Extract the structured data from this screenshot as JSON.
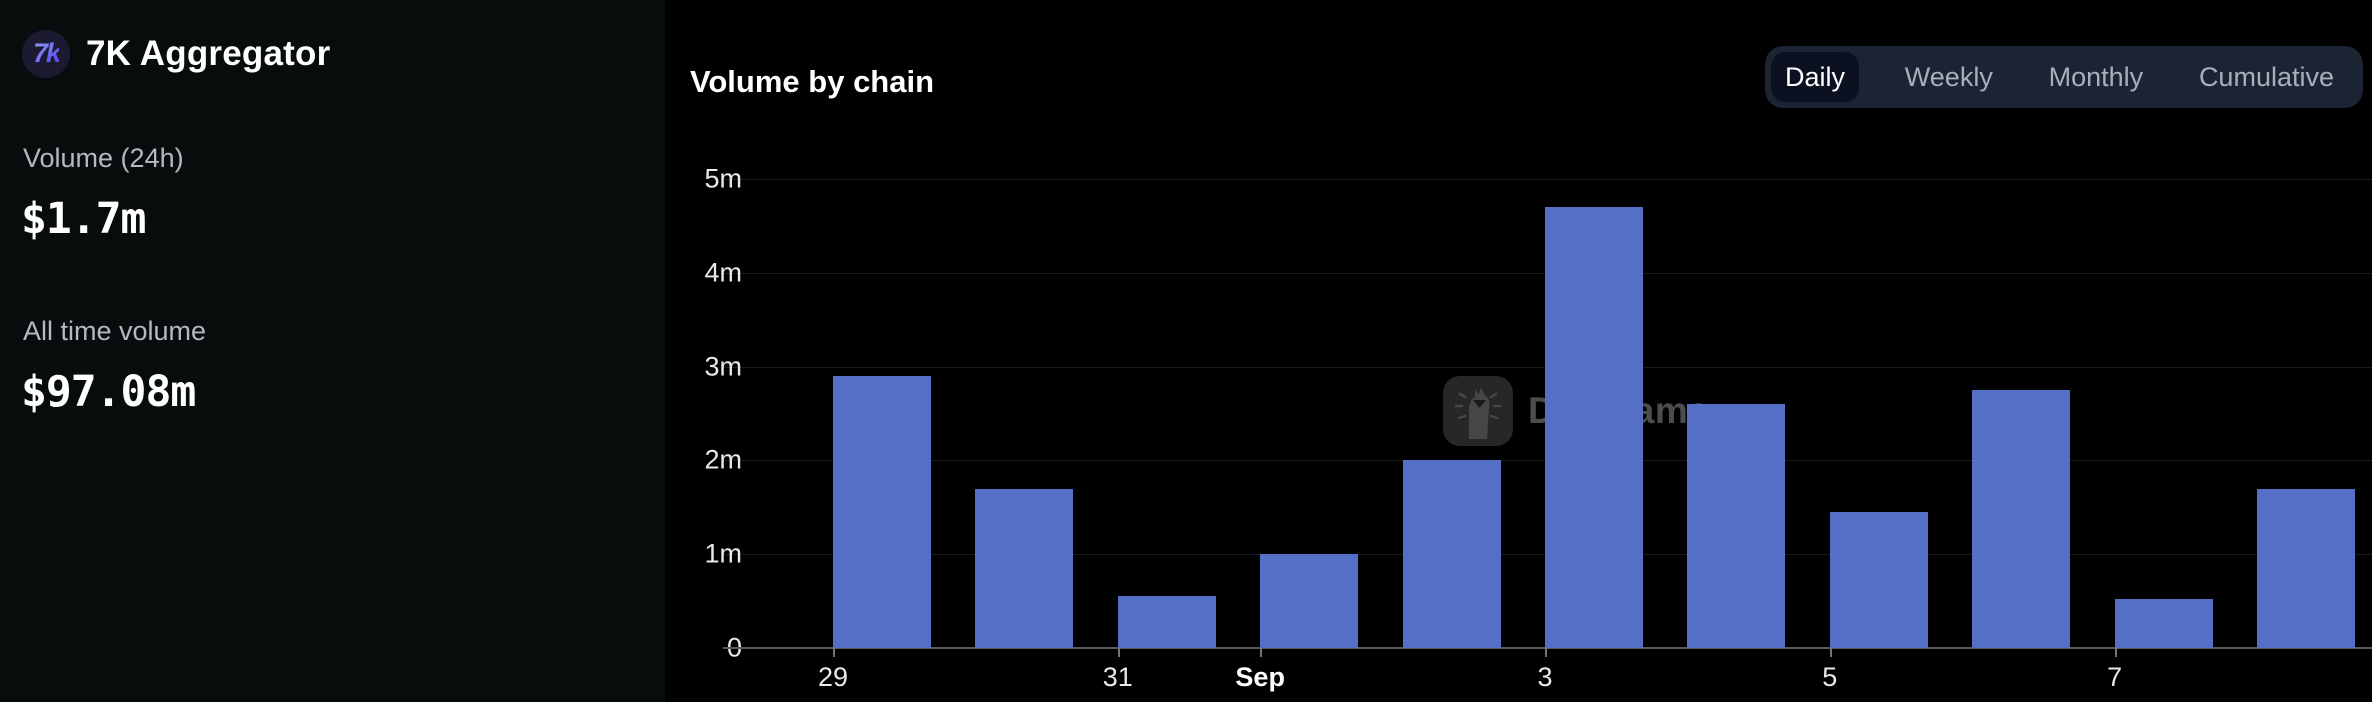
{
  "sidebar": {
    "logo_text": "7k",
    "app_title": "7K Aggregator",
    "stats": [
      {
        "label": "Volume (24h)",
        "value": "$1.7m"
      },
      {
        "label": "All time volume",
        "value": "$97.08m"
      }
    ]
  },
  "chart_header": {
    "title": "Volume by chain",
    "tabs": [
      {
        "label": "Daily",
        "active": true
      },
      {
        "label": "Weekly",
        "active": false
      },
      {
        "label": "Monthly",
        "active": false
      },
      {
        "label": "Cumulative",
        "active": false
      }
    ]
  },
  "watermark": {
    "label": "DefiLlama"
  },
  "chart_data": {
    "type": "bar",
    "title": "Volume by chain",
    "unit": "USD (m = millions)",
    "categories": [
      "Aug 29",
      "Aug 30",
      "Aug 31",
      "Sep 1",
      "Sep 2",
      "Sep 3",
      "Sep 4",
      "Sep 5",
      "Sep 6",
      "Sep 7",
      "Sep 8"
    ],
    "values": [
      2.9,
      1.7,
      0.55,
      1.0,
      2.0,
      4.7,
      2.6,
      1.45,
      2.75,
      0.52,
      1.7
    ],
    "x_tick_labels": [
      {
        "index": 0,
        "label": "29",
        "bold": false
      },
      {
        "index": 2,
        "label": "31",
        "bold": false
      },
      {
        "index": 3,
        "label": "Sep",
        "bold": true
      },
      {
        "index": 5,
        "label": "3",
        "bold": false
      },
      {
        "index": 7,
        "label": "5",
        "bold": false
      },
      {
        "index": 9,
        "label": "7",
        "bold": false
      }
    ],
    "y_tick_labels": [
      "0",
      "1m",
      "2m",
      "3m",
      "4m",
      "5m"
    ],
    "xlabel": "",
    "ylabel": "",
    "ylim": [
      0,
      5
    ],
    "grid": true,
    "legend": false,
    "bar_color": "#5470c6",
    "background_color": "#000000"
  },
  "colors": {
    "sidebar_bg": "#070c0c",
    "chart_bg": "#000000",
    "bar": "#5470c6",
    "tabbar_bg": "#1c2434",
    "tab_active_bg": "#0b1120",
    "logo_bg": "#1b1a30",
    "logo_gradient_start": "#8a8ff7",
    "logo_gradient_end": "#5a50ee",
    "grid_line": "#1b1b1b",
    "axis_line": "#565a61",
    "axis_text": "#e7e9eb",
    "stat_label_text": "#b6bac0",
    "watermark_text": "#4c4e4e"
  }
}
